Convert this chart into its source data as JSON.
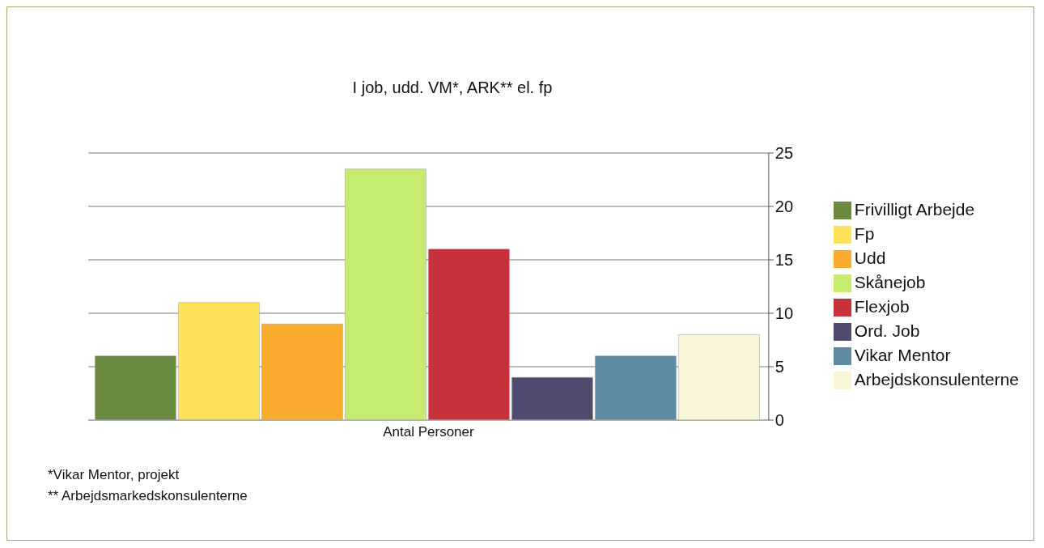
{
  "chart_data": {
    "type": "bar",
    "title": "I job, udd. VM*, ARK** el. fp",
    "categories": [
      "Antal Personer"
    ],
    "series": [
      {
        "name": "Frivilligt Arbejde",
        "color": "#6b8a3f",
        "values": [
          6
        ]
      },
      {
        "name": "Fp",
        "color": "#fde25a",
        "values": [
          11
        ]
      },
      {
        "name": "Udd",
        "color": "#fbac2e",
        "values": [
          9
        ]
      },
      {
        "name": "Skånejob",
        "color": "#c5ec6e",
        "values": [
          23.5
        ]
      },
      {
        "name": "Flexjob",
        "color": "#c8303a",
        "values": [
          16
        ]
      },
      {
        "name": "Ord. Job",
        "color": "#4f4a6e",
        "values": [
          4
        ]
      },
      {
        "name": "Vikar Mentor",
        "color": "#5f8aa3",
        "values": [
          6
        ]
      },
      {
        "name": "Arbejdskonsulenterne",
        "color": "#f8f5d8",
        "values": [
          8
        ]
      }
    ],
    "ylim": [
      0,
      25
    ],
    "yticks": [
      0,
      5,
      10,
      15,
      20,
      25
    ],
    "grid": "y",
    "legend": "right",
    "annotations": [
      "*Vikar Mentor, projekt",
      "** Arbejdsmarkedskonsulenterne"
    ]
  }
}
